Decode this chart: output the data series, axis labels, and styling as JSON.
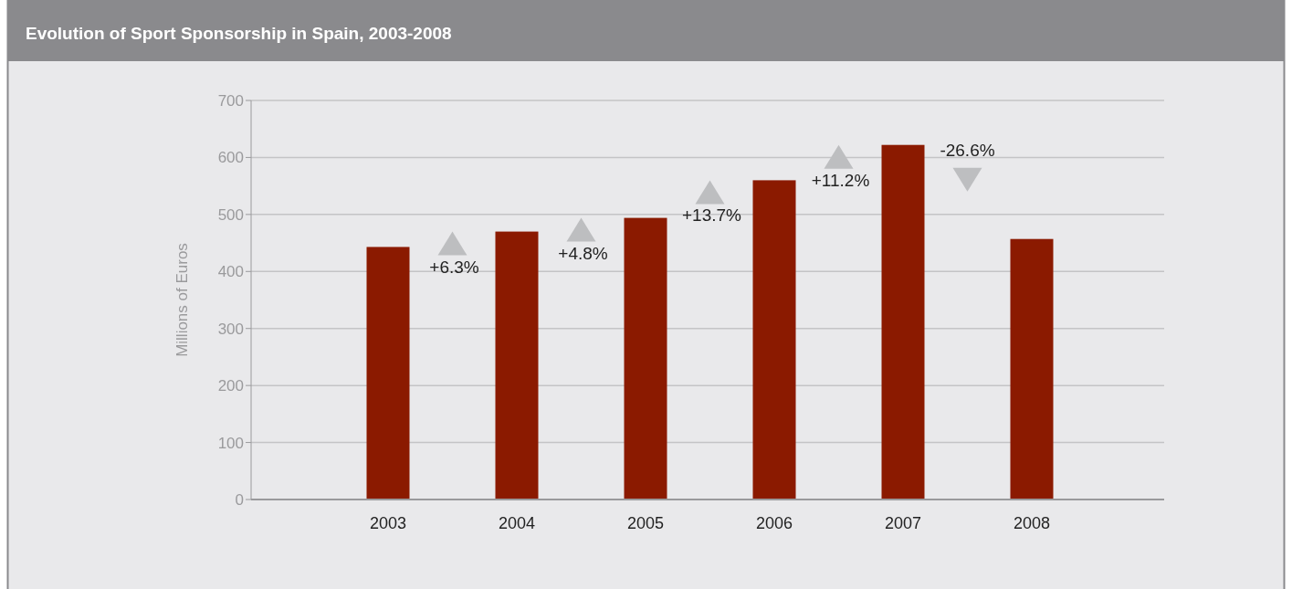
{
  "chart_data": {
    "type": "bar",
    "title": "Evolution of Sport Sponsorship in Spain, 2003-2008",
    "ylabel": "Millions of Euros",
    "categories": [
      "2003",
      "2004",
      "2005",
      "2006",
      "2007",
      "2008"
    ],
    "values": [
      443,
      470,
      494,
      560,
      622,
      457
    ],
    "color": "#8b1a00",
    "ylim": [
      0,
      700
    ],
    "yticks": [
      0,
      100,
      200,
      300,
      400,
      500,
      600,
      700
    ],
    "grid": "y",
    "annotations": [
      "+6.3%",
      "+4.8%",
      "+13.7%",
      "+11.2%",
      "-26.6%"
    ]
  }
}
